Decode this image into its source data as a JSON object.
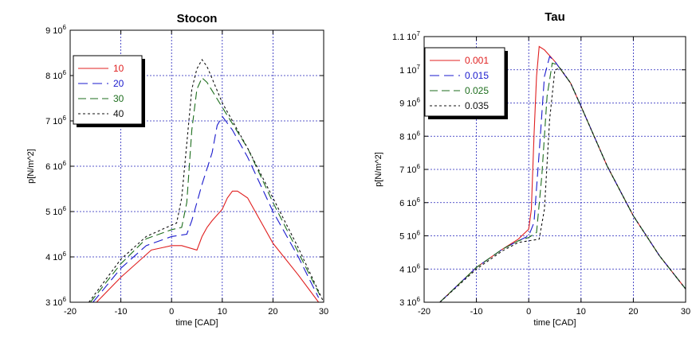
{
  "chart_data": [
    {
      "type": "line",
      "title": "Stocon",
      "xlabel": "time [CAD]",
      "ylabel": "p[N/m^2]",
      "xlim": [
        -20,
        30
      ],
      "ylim": [
        3000000,
        9000000
      ],
      "xticks": [
        -20,
        -10,
        0,
        10,
        20,
        30
      ],
      "xtick_labels": [
        "-20",
        "-10",
        "0",
        "10",
        "20",
        "30"
      ],
      "yticks": [
        3000000,
        4000000,
        5000000,
        6000000,
        7000000,
        8000000,
        9000000
      ],
      "ytick_labels": [
        {
          "mant": "3 10",
          "exp": "6"
        },
        {
          "mant": "4 10",
          "exp": "6"
        },
        {
          "mant": "5 10",
          "exp": "6"
        },
        {
          "mant": "6 10",
          "exp": "6"
        },
        {
          "mant": "7 10",
          "exp": "6"
        },
        {
          "mant": "8 10",
          "exp": "6"
        },
        {
          "mant": "9 10",
          "exp": "6"
        }
      ],
      "grid": true,
      "legend_position": "top-left",
      "series": [
        {
          "name": "10",
          "color": "#e02020",
          "dash": "solid",
          "points": [
            [
              -14.8,
              3000000
            ],
            [
              -10,
              3550000
            ],
            [
              -5,
              4050000
            ],
            [
              -4,
              4150000
            ],
            [
              -2,
              4200000
            ],
            [
              0,
              4250000
            ],
            [
              2,
              4250000
            ],
            [
              5,
              4150000
            ],
            [
              6,
              4450000
            ],
            [
              7,
              4650000
            ],
            [
              8,
              4800000
            ],
            [
              10,
              5050000
            ],
            [
              11,
              5300000
            ],
            [
              12,
              5450000
            ],
            [
              13,
              5450000
            ],
            [
              15,
              5300000
            ],
            [
              20,
              4300000
            ],
            [
              25,
              3600000
            ],
            [
              29,
              3000000
            ]
          ]
        },
        {
          "name": "20",
          "color": "#1a1acd",
          "dash": "12,6",
          "points": [
            [
              -15.5,
              3000000
            ],
            [
              -10,
              3750000
            ],
            [
              -5,
              4250000
            ],
            [
              0,
              4450000
            ],
            [
              3,
              4500000
            ],
            [
              4,
              4800000
            ],
            [
              6,
              5600000
            ],
            [
              8,
              6300000
            ],
            [
              9,
              6900000
            ],
            [
              10,
              7100000
            ],
            [
              12,
              6800000
            ],
            [
              15,
              6200000
            ],
            [
              20,
              5000000
            ],
            [
              25,
              4000000
            ],
            [
              29,
              3100000
            ]
          ]
        },
        {
          "name": "30",
          "color": "#1e6e1e",
          "dash": "10,5",
          "points": [
            [
              -16,
              3000000
            ],
            [
              -10,
              3850000
            ],
            [
              -5,
              4400000
            ],
            [
              0,
              4600000
            ],
            [
              2,
              4650000
            ],
            [
              3,
              5200000
            ],
            [
              4,
              6800000
            ],
            [
              5,
              7700000
            ],
            [
              6,
              7950000
            ],
            [
              7,
              7850000
            ],
            [
              10,
              7300000
            ],
            [
              15,
              6400000
            ],
            [
              20,
              5200000
            ],
            [
              25,
              4100000
            ],
            [
              29.5,
              3100000
            ]
          ]
        },
        {
          "name": "40",
          "color": "#111111",
          "dash": "3,3",
          "points": [
            [
              -16.3,
              3000000
            ],
            [
              -10,
              3950000
            ],
            [
              -5,
              4450000
            ],
            [
              0,
              4700000
            ],
            [
              1,
              4750000
            ],
            [
              2,
              5300000
            ],
            [
              3,
              6500000
            ],
            [
              4,
              7700000
            ],
            [
              5,
              8150000
            ],
            [
              6,
              8350000
            ],
            [
              7,
              8200000
            ],
            [
              10,
              7400000
            ],
            [
              15,
              6400000
            ],
            [
              20,
              5300000
            ],
            [
              25,
              4200000
            ],
            [
              30,
              3000000
            ]
          ]
        }
      ]
    },
    {
      "type": "line",
      "title": "Tau",
      "xlabel": "time [CAD]",
      "ylabel": "p[N/m^2]",
      "xlim": [
        -20,
        30
      ],
      "ylim": [
        3000000,
        11000000
      ],
      "xticks": [
        -20,
        -10,
        0,
        10,
        20,
        30
      ],
      "xtick_labels": [
        "-20",
        "-10",
        "0",
        "10",
        "20",
        "30"
      ],
      "yticks": [
        3000000,
        4000000,
        5000000,
        6000000,
        7000000,
        8000000,
        9000000,
        10000000,
        11000000
      ],
      "ytick_labels": [
        {
          "mant": "3 10",
          "exp": "6"
        },
        {
          "mant": "4 10",
          "exp": "6"
        },
        {
          "mant": "5 10",
          "exp": "6"
        },
        {
          "mant": "6 10",
          "exp": "6"
        },
        {
          "mant": "7 10",
          "exp": "6"
        },
        {
          "mant": "8 10",
          "exp": "6"
        },
        {
          "mant": "9 10",
          "exp": "6"
        },
        {
          "mant": "1 10",
          "exp": "7"
        },
        {
          "mant": "1.1 10",
          "exp": "7"
        }
      ],
      "grid": true,
      "legend_position": "top-left",
      "series": [
        {
          "name": "0.001",
          "color": "#e02020",
          "dash": "solid",
          "points": [
            [
              -17,
              3000000
            ],
            [
              -10,
              4050000
            ],
            [
              -5,
              4600000
            ],
            [
              -2,
              4900000
            ],
            [
              0,
              5200000
            ],
            [
              0.5,
              5800000
            ],
            [
              1,
              8000000
            ],
            [
              1.5,
              9800000
            ],
            [
              2,
              10700000
            ],
            [
              3,
              10600000
            ],
            [
              5,
              10250000
            ],
            [
              8,
              9600000
            ],
            [
              10,
              8900000
            ],
            [
              15,
              7100000
            ],
            [
              20,
              5600000
            ],
            [
              25,
              4400000
            ],
            [
              30,
              3400000
            ]
          ]
        },
        {
          "name": "0.015",
          "color": "#1a1acd",
          "dash": "12,6",
          "points": [
            [
              -17,
              3000000
            ],
            [
              -10,
              4050000
            ],
            [
              -5,
              4600000
            ],
            [
              -2,
              4850000
            ],
            [
              0,
              5000000
            ],
            [
              1,
              5400000
            ],
            [
              2,
              7500000
            ],
            [
              3,
              9800000
            ],
            [
              4,
              10400000
            ],
            [
              5,
              10250000
            ],
            [
              8,
              9600000
            ],
            [
              10,
              8900000
            ],
            [
              15,
              7100000
            ],
            [
              20,
              5600000
            ],
            [
              25,
              4400000
            ],
            [
              30,
              3400000
            ]
          ]
        },
        {
          "name": "0.025",
          "color": "#1e6e1e",
          "dash": "10,5",
          "points": [
            [
              -17,
              3000000
            ],
            [
              -10,
              4050000
            ],
            [
              -5,
              4600000
            ],
            [
              -2,
              4850000
            ],
            [
              0,
              4950000
            ],
            [
              1.5,
              5100000
            ],
            [
              2.5,
              6800000
            ],
            [
              3.5,
              9200000
            ],
            [
              4.5,
              10200000
            ],
            [
              5.5,
              10150000
            ],
            [
              8,
              9600000
            ],
            [
              10,
              8900000
            ],
            [
              15,
              7100000
            ],
            [
              20,
              5600000
            ],
            [
              25,
              4400000
            ],
            [
              30,
              3400000
            ]
          ]
        },
        {
          "name": "0.035",
          "color": "#111111",
          "dash": "3,3",
          "points": [
            [
              -17,
              3000000
            ],
            [
              -10,
              4000000
            ],
            [
              -5,
              4550000
            ],
            [
              -2,
              4800000
            ],
            [
              0,
              4850000
            ],
            [
              2,
              4900000
            ],
            [
              3,
              5800000
            ],
            [
              4,
              8500000
            ],
            [
              5,
              10000000
            ],
            [
              6,
              10050000
            ],
            [
              8,
              9600000
            ],
            [
              10,
              8900000
            ],
            [
              15,
              7100000
            ],
            [
              20,
              5600000
            ],
            [
              25,
              4400000
            ],
            [
              30,
              3400000
            ]
          ]
        }
      ]
    }
  ]
}
